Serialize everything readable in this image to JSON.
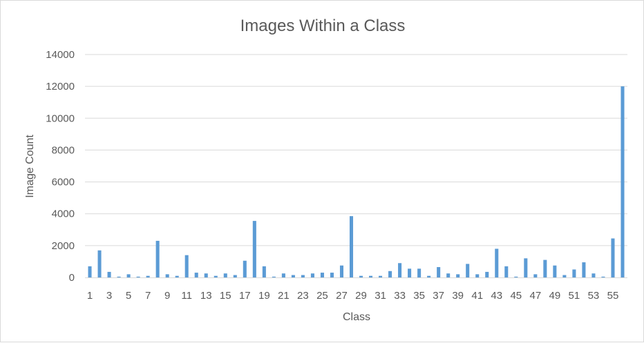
{
  "chart_data": {
    "type": "bar",
    "title": "Images Within a Class",
    "xlabel": "Class",
    "ylabel": "Image Count",
    "ylim": [
      0,
      14000
    ],
    "yticks": [
      "0",
      "2000",
      "4000",
      "6000",
      "8000",
      "10000",
      "12000",
      "14000"
    ],
    "grid": true,
    "legend": "none",
    "bar_color": "#5b9bd5",
    "categories": [
      "1",
      "2",
      "3",
      "4",
      "5",
      "6",
      "7",
      "8",
      "9",
      "10",
      "11",
      "12",
      "13",
      "14",
      "15",
      "16",
      "17",
      "18",
      "19",
      "20",
      "21",
      "22",
      "23",
      "24",
      "25",
      "26",
      "27",
      "28",
      "29",
      "30",
      "31",
      "32",
      "33",
      "34",
      "35",
      "36",
      "37",
      "38",
      "39",
      "40",
      "41",
      "42",
      "43",
      "44",
      "45",
      "46",
      "47",
      "48",
      "49",
      "50",
      "51",
      "52",
      "53",
      "54",
      "55",
      "56"
    ],
    "values": [
      700,
      1700,
      350,
      50,
      200,
      50,
      100,
      2300,
      200,
      100,
      1400,
      300,
      250,
      100,
      250,
      150,
      1050,
      3550,
      700,
      50,
      250,
      150,
      150,
      250,
      300,
      300,
      750,
      3850,
      100,
      100,
      100,
      400,
      900,
      550,
      550,
      100,
      650,
      250,
      200,
      850,
      200,
      350,
      1800,
      700,
      50,
      1200,
      200,
      1100,
      750,
      150,
      500,
      950,
      250,
      50,
      2450,
      12000
    ]
  }
}
